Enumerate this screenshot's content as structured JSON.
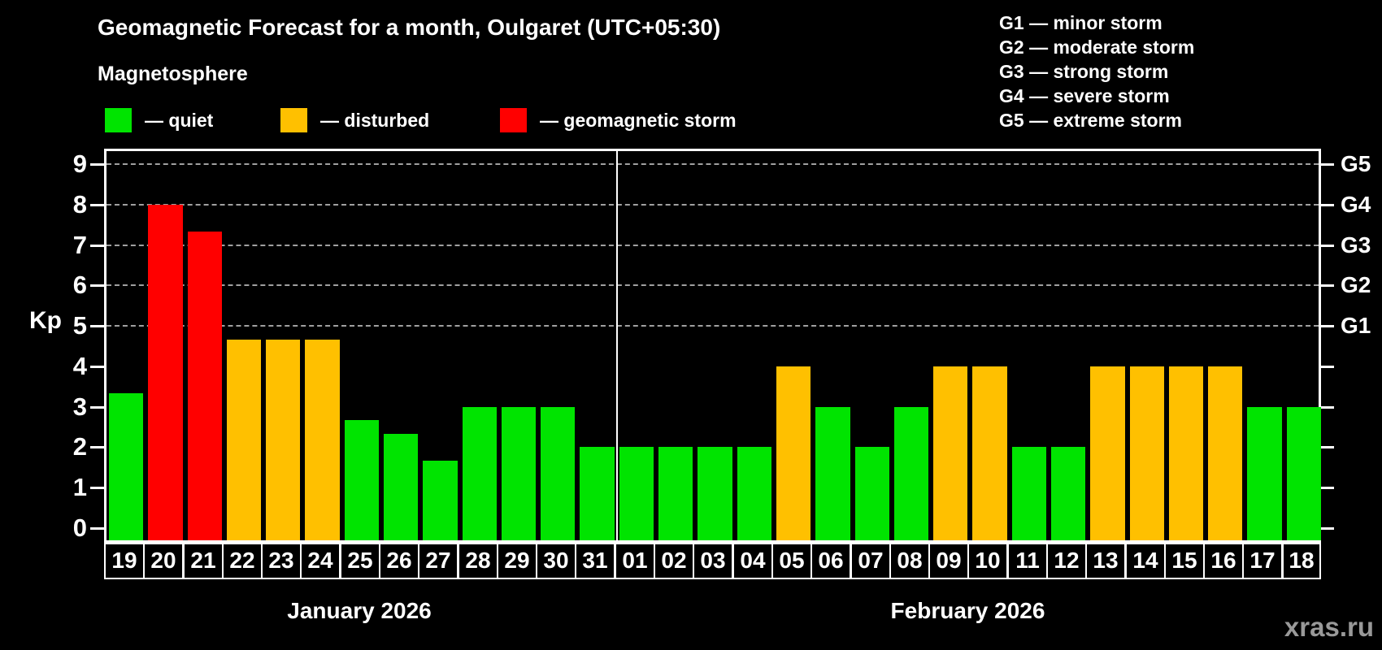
{
  "title": "Geomagnetic Forecast for a month, Oulgaret (UTC+05:30)",
  "subtitle": "Magnetosphere",
  "bar_legend": [
    {
      "status": "quiet",
      "label": "— quiet"
    },
    {
      "status": "disturbed",
      "label": "— disturbed"
    },
    {
      "status": "storm",
      "label": "— geomagnetic storm"
    }
  ],
  "storm_scale_legend": [
    "G1 — minor storm",
    "G2 — moderate storm",
    "G3 — strong storm",
    "G4 — severe storm",
    "G5 — extreme storm"
  ],
  "watermark": "xras.ru",
  "chart_data": {
    "type": "bar",
    "ylabel": "Kp",
    "ylim": [
      0,
      9
    ],
    "yticks": [
      0,
      1,
      2,
      3,
      4,
      5,
      6,
      7,
      8,
      9
    ],
    "gridlines_at_kp": [
      5,
      6,
      7,
      8,
      9
    ],
    "grid": "dashed horizontal at storm levels only",
    "legend_position": "top",
    "right_axis": [
      {
        "label": "G1",
        "kp": 5
      },
      {
        "label": "G2",
        "kp": 6
      },
      {
        "label": "G3",
        "kp": 7
      },
      {
        "label": "G4",
        "kp": 8
      },
      {
        "label": "G5",
        "kp": 9
      }
    ],
    "status_colors": {
      "quiet": "#00e400",
      "disturbed": "#ffc000",
      "storm": "#ff0000"
    },
    "months": [
      {
        "label": "January 2026",
        "day_count": 13
      },
      {
        "label": "February 2026",
        "day_count": 18
      }
    ],
    "bars": [
      {
        "day": "19",
        "month": "January 2026",
        "kp": 3.33,
        "status": "quiet"
      },
      {
        "day": "20",
        "month": "January 2026",
        "kp": 8.0,
        "status": "storm"
      },
      {
        "day": "21",
        "month": "January 2026",
        "kp": 7.33,
        "status": "storm"
      },
      {
        "day": "22",
        "month": "January 2026",
        "kp": 4.67,
        "status": "disturbed"
      },
      {
        "day": "23",
        "month": "January 2026",
        "kp": 4.67,
        "status": "disturbed"
      },
      {
        "day": "24",
        "month": "January 2026",
        "kp": 4.67,
        "status": "disturbed"
      },
      {
        "day": "25",
        "month": "January 2026",
        "kp": 2.67,
        "status": "quiet"
      },
      {
        "day": "26",
        "month": "January 2026",
        "kp": 2.33,
        "status": "quiet"
      },
      {
        "day": "27",
        "month": "January 2026",
        "kp": 1.67,
        "status": "quiet"
      },
      {
        "day": "28",
        "month": "January 2026",
        "kp": 3.0,
        "status": "quiet"
      },
      {
        "day": "29",
        "month": "January 2026",
        "kp": 3.0,
        "status": "quiet"
      },
      {
        "day": "30",
        "month": "January 2026",
        "kp": 3.0,
        "status": "quiet"
      },
      {
        "day": "31",
        "month": "January 2026",
        "kp": 2.0,
        "status": "quiet"
      },
      {
        "day": "01",
        "month": "February 2026",
        "kp": 2.0,
        "status": "quiet"
      },
      {
        "day": "02",
        "month": "February 2026",
        "kp": 2.0,
        "status": "quiet"
      },
      {
        "day": "03",
        "month": "February 2026",
        "kp": 2.0,
        "status": "quiet"
      },
      {
        "day": "04",
        "month": "February 2026",
        "kp": 2.0,
        "status": "quiet"
      },
      {
        "day": "05",
        "month": "February 2026",
        "kp": 4.0,
        "status": "disturbed"
      },
      {
        "day": "06",
        "month": "February 2026",
        "kp": 3.0,
        "status": "quiet"
      },
      {
        "day": "07",
        "month": "February 2026",
        "kp": 2.0,
        "status": "quiet"
      },
      {
        "day": "08",
        "month": "February 2026",
        "kp": 3.0,
        "status": "quiet"
      },
      {
        "day": "09",
        "month": "February 2026",
        "kp": 4.0,
        "status": "disturbed"
      },
      {
        "day": "10",
        "month": "February 2026",
        "kp": 4.0,
        "status": "disturbed"
      },
      {
        "day": "11",
        "month": "February 2026",
        "kp": 2.0,
        "status": "quiet"
      },
      {
        "day": "12",
        "month": "February 2026",
        "kp": 2.0,
        "status": "quiet"
      },
      {
        "day": "13",
        "month": "February 2026",
        "kp": 4.0,
        "status": "disturbed"
      },
      {
        "day": "14",
        "month": "February 2026",
        "kp": 4.0,
        "status": "disturbed"
      },
      {
        "day": "15",
        "month": "February 2026",
        "kp": 4.0,
        "status": "disturbed"
      },
      {
        "day": "16",
        "month": "February 2026",
        "kp": 4.0,
        "status": "disturbed"
      },
      {
        "day": "17",
        "month": "February 2026",
        "kp": 3.0,
        "status": "quiet"
      },
      {
        "day": "18",
        "month": "February 2026",
        "kp": 3.0,
        "status": "quiet"
      }
    ]
  }
}
